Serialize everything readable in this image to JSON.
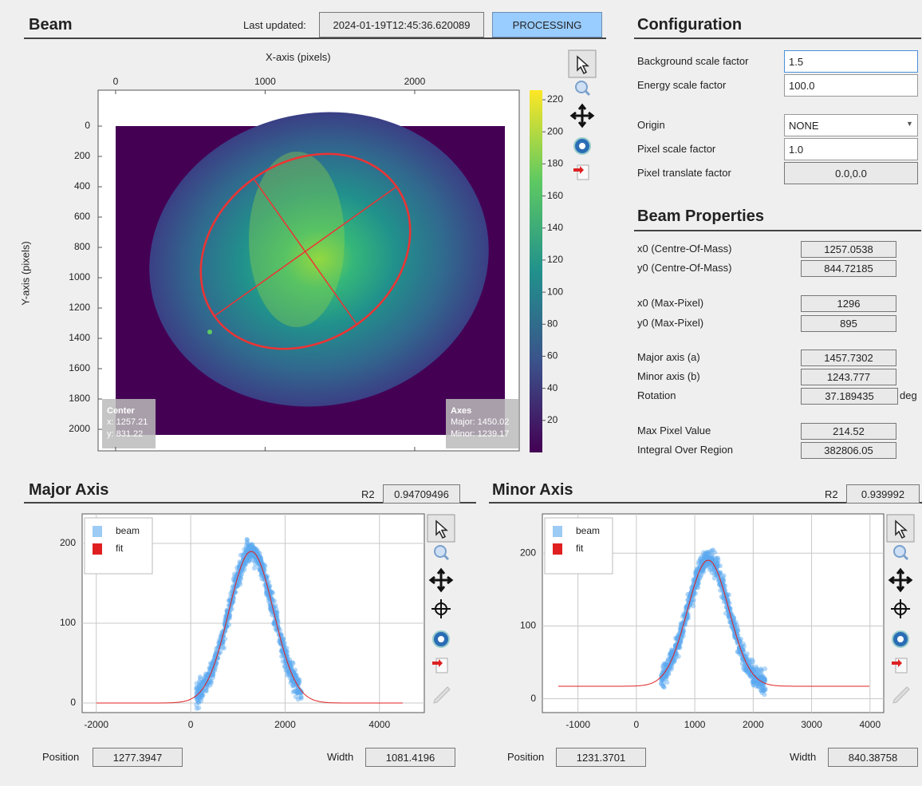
{
  "beam": {
    "title": "Beam",
    "last_updated_label": "Last updated:",
    "last_updated": "2024-01-19T12:45:36.620089",
    "status": "PROCESSING",
    "image_plot": {
      "type": "heatmap",
      "xlabel": "X-axis (pixels)",
      "ylabel": "Y-axis (pixels)",
      "xlim": [
        -117,
        2699
      ],
      "xticks": [
        0,
        1000,
        2000
      ],
      "ylim": [
        2142,
        -237
      ],
      "yticks": [
        0,
        200,
        400,
        600,
        800,
        1000,
        1200,
        1400,
        1600,
        1800,
        2000
      ],
      "clim": [
        0,
        226
      ],
      "cticks": [
        20,
        40,
        60,
        80,
        100,
        120,
        140,
        160,
        180,
        200,
        220
      ],
      "center_box": {
        "title": "Center",
        "x": "x: 1257.21",
        "y": "y: 831.22"
      },
      "axes_box": {
        "title": "Axes",
        "major": "Major: 1450.02",
        "minor": "Minor: 1239.17"
      }
    }
  },
  "configuration": {
    "title": "Configuration",
    "fields": [
      {
        "label": "Background scale factor",
        "value": "1.5"
      },
      {
        "label": "Energy scale factor",
        "value": "100.0"
      },
      {
        "label": "Origin",
        "value": "NONE"
      },
      {
        "label": "Pixel scale factor",
        "value": "1.0"
      },
      {
        "label": "Pixel translate factor",
        "value": "0.0,0.0"
      }
    ]
  },
  "beam_properties": {
    "title": "Beam Properties",
    "rows": [
      {
        "label": "x0 (Centre-Of-Mass)",
        "value": "1257.0538"
      },
      {
        "label": "y0 (Centre-Of-Mass)",
        "value": "844.72185"
      },
      {
        "label": "x0 (Max-Pixel)",
        "value": "1296"
      },
      {
        "label": "y0 (Max-Pixel)",
        "value": "895"
      },
      {
        "label": "Major axis (a)",
        "value": "1457.7302"
      },
      {
        "label": "Minor axis (b)",
        "value": "1243.777"
      },
      {
        "label": "Rotation",
        "value": "37.189435",
        "unit": "deg"
      },
      {
        "label": "Max Pixel Value",
        "value": "214.52"
      },
      {
        "label": "Integral Over Region",
        "value": "382806.05"
      }
    ]
  },
  "major_axis": {
    "title": "Major Axis",
    "r2_label": "R2",
    "r2": "0.94709496",
    "chart": {
      "type": "scatter",
      "xlim": [
        -2300,
        4950
      ],
      "xticks": [
        -2000,
        0,
        2000,
        4000
      ],
      "ylim": [
        -12,
        237
      ],
      "yticks": [
        0,
        100,
        200
      ],
      "grid": true,
      "series": [
        {
          "name": "beam",
          "color": "#5aa9ef"
        },
        {
          "name": "fit",
          "color": "#e02020"
        }
      ]
    },
    "position_label": "Position",
    "position": "1277.3947",
    "width_label": "Width",
    "width": "1081.4196"
  },
  "minor_axis": {
    "title": "Minor Axis",
    "r2_label": "R2",
    "r2": "0.939992",
    "chart": {
      "type": "scatter",
      "xlim": [
        -1610,
        4235
      ],
      "xticks": [
        -1000,
        0,
        1000,
        2000,
        3000,
        4000
      ],
      "ylim": [
        -19,
        254
      ],
      "yticks": [
        0,
        100,
        200
      ],
      "grid": true,
      "series": [
        {
          "name": "beam",
          "color": "#5aa9ef"
        },
        {
          "name": "fit",
          "color": "#e02020"
        }
      ]
    },
    "position_label": "Position",
    "position": "1231.3701",
    "width_label": "Width",
    "width": "840.38758"
  }
}
